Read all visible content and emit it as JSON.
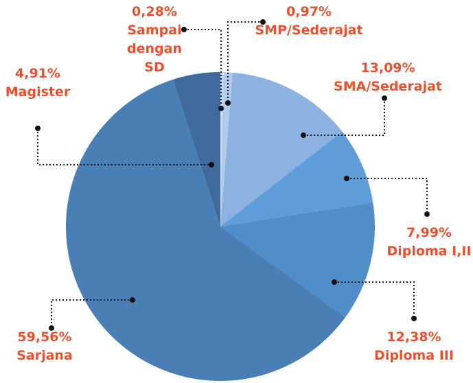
{
  "chart_data": {
    "type": "pie",
    "categories": [
      "Sampai dengan SD",
      "SMP/Sederajat",
      "SMA/Sederajat",
      "Diploma I,II",
      "Diploma III",
      "Sarjana",
      "Magister"
    ],
    "values": [
      0.28,
      0.97,
      13.09,
      7.99,
      12.38,
      59.56,
      4.91
    ],
    "value_labels": [
      "0,28%",
      "0,97%",
      "13,09%",
      "7,99%",
      "12,38%",
      "59,56%",
      "4,91%"
    ],
    "colors": [
      "#cbdaf0",
      "#b3cbea",
      "#8cb2e1",
      "#5e9dd8",
      "#4f8dcb",
      "#4a7fb6",
      "#3e6b9b"
    ],
    "label_color": "#e9512e"
  }
}
